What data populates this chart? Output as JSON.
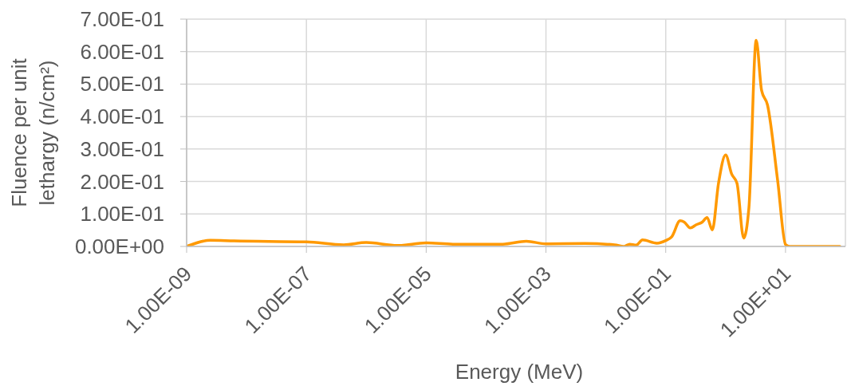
{
  "chart_data": {
    "type": "line",
    "xlabel": "Energy (MeV)",
    "ylabel": "Fluence per unit lethargy (n/cm²)",
    "x": [
      1e-09,
      2.5e-09,
      6.2e-09,
      1e-07,
      4.2e-07,
      1e-06,
      3.3e-06,
      1e-05,
      2.8e-05,
      0.00019,
      0.00047,
      0.001,
      0.0045,
      0.014,
      0.02,
      0.025,
      0.032,
      0.041,
      0.071,
      0.1,
      0.126,
      0.174,
      0.204,
      0.257,
      0.324,
      0.407,
      0.49,
      0.6,
      0.76,
      1.0,
      1.26,
      1.55,
      2.0,
      2.45,
      3.24,
      3.98,
      5.0,
      7.4,
      10,
      11.7,
      81
    ],
    "values": [
      0,
      0.019,
      0.017,
      0.014,
      0.005,
      0.012,
      0.003,
      0.011,
      0.007,
      0.007,
      0.016,
      0.008,
      0.009,
      0.005,
      0,
      0.007,
      0.004,
      0.02,
      0.01,
      0.018,
      0.03,
      0.079,
      0.075,
      0.057,
      0.067,
      0.075,
      0.089,
      0.051,
      0.194,
      0.282,
      0.223,
      0.194,
      0.026,
      0.12,
      0.635,
      0.481,
      0.436,
      0.202,
      0.006,
      0,
      0
    ],
    "color": "#ff9900",
    "line_style": "solid",
    "marker": "none",
    "log": "x",
    "xlim": [
      1e-09,
      100
    ],
    "xticks": [
      {
        "value": 1e-09,
        "label": "1.00E-09"
      },
      {
        "value": 1e-07,
        "label": "1.00E-07"
      },
      {
        "value": 1e-05,
        "label": "1.00E-05"
      },
      {
        "value": 0.001,
        "label": "1.00E-03"
      },
      {
        "value": 0.1,
        "label": "1.00E-01"
      },
      {
        "value": 10,
        "label": "1.00E+01"
      }
    ],
    "ylim": [
      0,
      0.7
    ],
    "yticks": [
      {
        "value": 0,
        "label": "0.00E+00"
      },
      {
        "value": 0.1,
        "label": "1.00E-01"
      },
      {
        "value": 0.2,
        "label": "2.00E-01"
      },
      {
        "value": 0.3,
        "label": "3.00E-01"
      },
      {
        "value": 0.4,
        "label": "4.00E-01"
      },
      {
        "value": 0.5,
        "label": "5.00E-01"
      },
      {
        "value": 0.6,
        "label": "6.00E-01"
      },
      {
        "value": 0.7,
        "label": "7.00E-01"
      }
    ],
    "grid": true
  }
}
